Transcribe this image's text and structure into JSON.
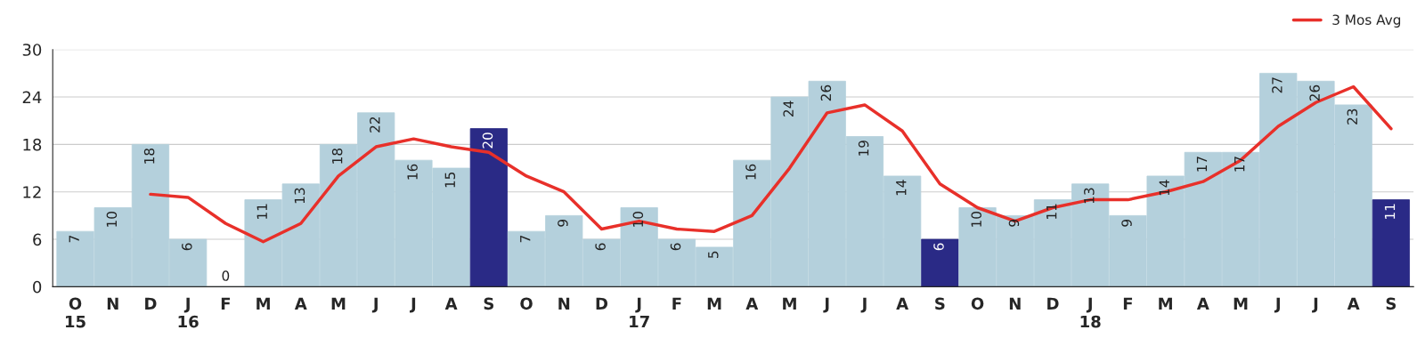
{
  "chart_data": {
    "type": "bar",
    "categories": [
      "O\n15",
      "N",
      "D",
      "J\n16",
      "F",
      "M",
      "A",
      "M",
      "J",
      "J",
      "A",
      "S",
      "O",
      "N",
      "D",
      "J\n17",
      "F",
      "M",
      "A",
      "M",
      "J",
      "J",
      "A",
      "S",
      "O",
      "N",
      "D",
      "J\n18",
      "F",
      "M",
      "A",
      "M",
      "J",
      "J",
      "A",
      "S"
    ],
    "series": [
      {
        "value_labels": [
          "7",
          "10",
          "18",
          "6",
          "0",
          "11",
          "13",
          "18",
          "22",
          "16",
          "15",
          "20",
          "7",
          "9",
          "6",
          "10",
          "6",
          "5",
          "16",
          "24",
          "26",
          "19",
          "14",
          "6",
          "10",
          "9",
          "11",
          "13",
          "9",
          "14",
          "17",
          "17",
          "27",
          "26",
          "23",
          "11"
        ],
        "values": [
          7,
          10,
          18,
          6,
          0,
          11,
          13,
          18,
          22,
          16,
          15,
          20,
          7,
          9,
          6,
          10,
          6,
          5,
          16,
          24,
          26,
          19,
          14,
          6,
          10,
          9,
          11,
          13,
          9,
          14,
          17,
          17,
          27,
          26,
          23,
          11
        ],
        "colors": [
          "#b4d0dc",
          "#b4d0dc",
          "#b4d0dc",
          "#b4d0dc",
          "#b4d0dc",
          "#b4d0dc",
          "#b4d0dc",
          "#b4d0dc",
          "#b4d0dc",
          "#b4d0dc",
          "#b4d0dc",
          "#2a2a86",
          "#b4d0dc",
          "#b4d0dc",
          "#b4d0dc",
          "#b4d0dc",
          "#b4d0dc",
          "#b4d0dc",
          "#b4d0dc",
          "#b4d0dc",
          "#b4d0dc",
          "#b4d0dc",
          "#b4d0dc",
          "#2a2a86",
          "#b4d0dc",
          "#b4d0dc",
          "#b4d0dc",
          "#b4d0dc",
          "#b4d0dc",
          "#b4d0dc",
          "#b4d0dc",
          "#b4d0dc",
          "#b4d0dc",
          "#b4d0dc",
          "#b4d0dc",
          "#2a2a86"
        ]
      },
      {
        "type": "line",
        "name": "3 Mos Avg",
        "color": "#e8302a",
        "values": [
          null,
          null,
          11.7,
          11.3,
          8,
          5.7,
          8,
          14,
          17.7,
          18.7,
          17.7,
          17,
          14,
          12,
          7.3,
          8.3,
          7.3,
          7,
          9,
          15,
          22,
          23,
          19.7,
          13,
          10,
          8.3,
          10,
          11,
          11,
          12,
          13.3,
          16,
          20.3,
          23.3,
          25.3,
          20
        ]
      }
    ],
    "ylim": [
      0,
      30
    ],
    "yticks": [
      0,
      6,
      12,
      18,
      24,
      30
    ],
    "grid": "y",
    "legend": "top right"
  }
}
